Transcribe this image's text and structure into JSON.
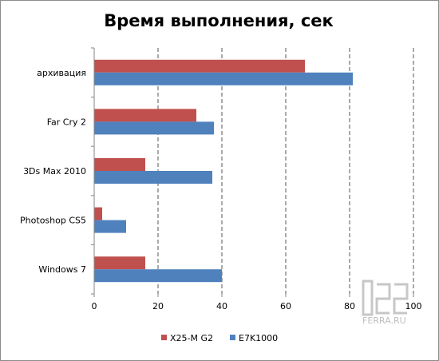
{
  "chart_data": {
    "type": "bar",
    "orientation": "horizontal",
    "title": "Время выполнения, сек",
    "xlabel": "",
    "ylabel": "",
    "categories": [
      "архивация",
      "Far Cry 2",
      "3Ds Max 2010",
      "Photoshop CS5",
      "Windows 7"
    ],
    "series": [
      {
        "name": "X25-M G2",
        "color": "#c0504d",
        "values": [
          66,
          32,
          16,
          2.5,
          16
        ]
      },
      {
        "name": "E7K1000",
        "color": "#4f81bd",
        "values": [
          81,
          37.5,
          37,
          10,
          40
        ]
      }
    ],
    "xlim": [
      0,
      100
    ],
    "xticks": [
      0,
      20,
      40,
      60,
      80,
      100
    ],
    "grid": "vertical dashed",
    "legend": "bottom"
  },
  "watermark": {
    "text": "FERRA.RU"
  }
}
